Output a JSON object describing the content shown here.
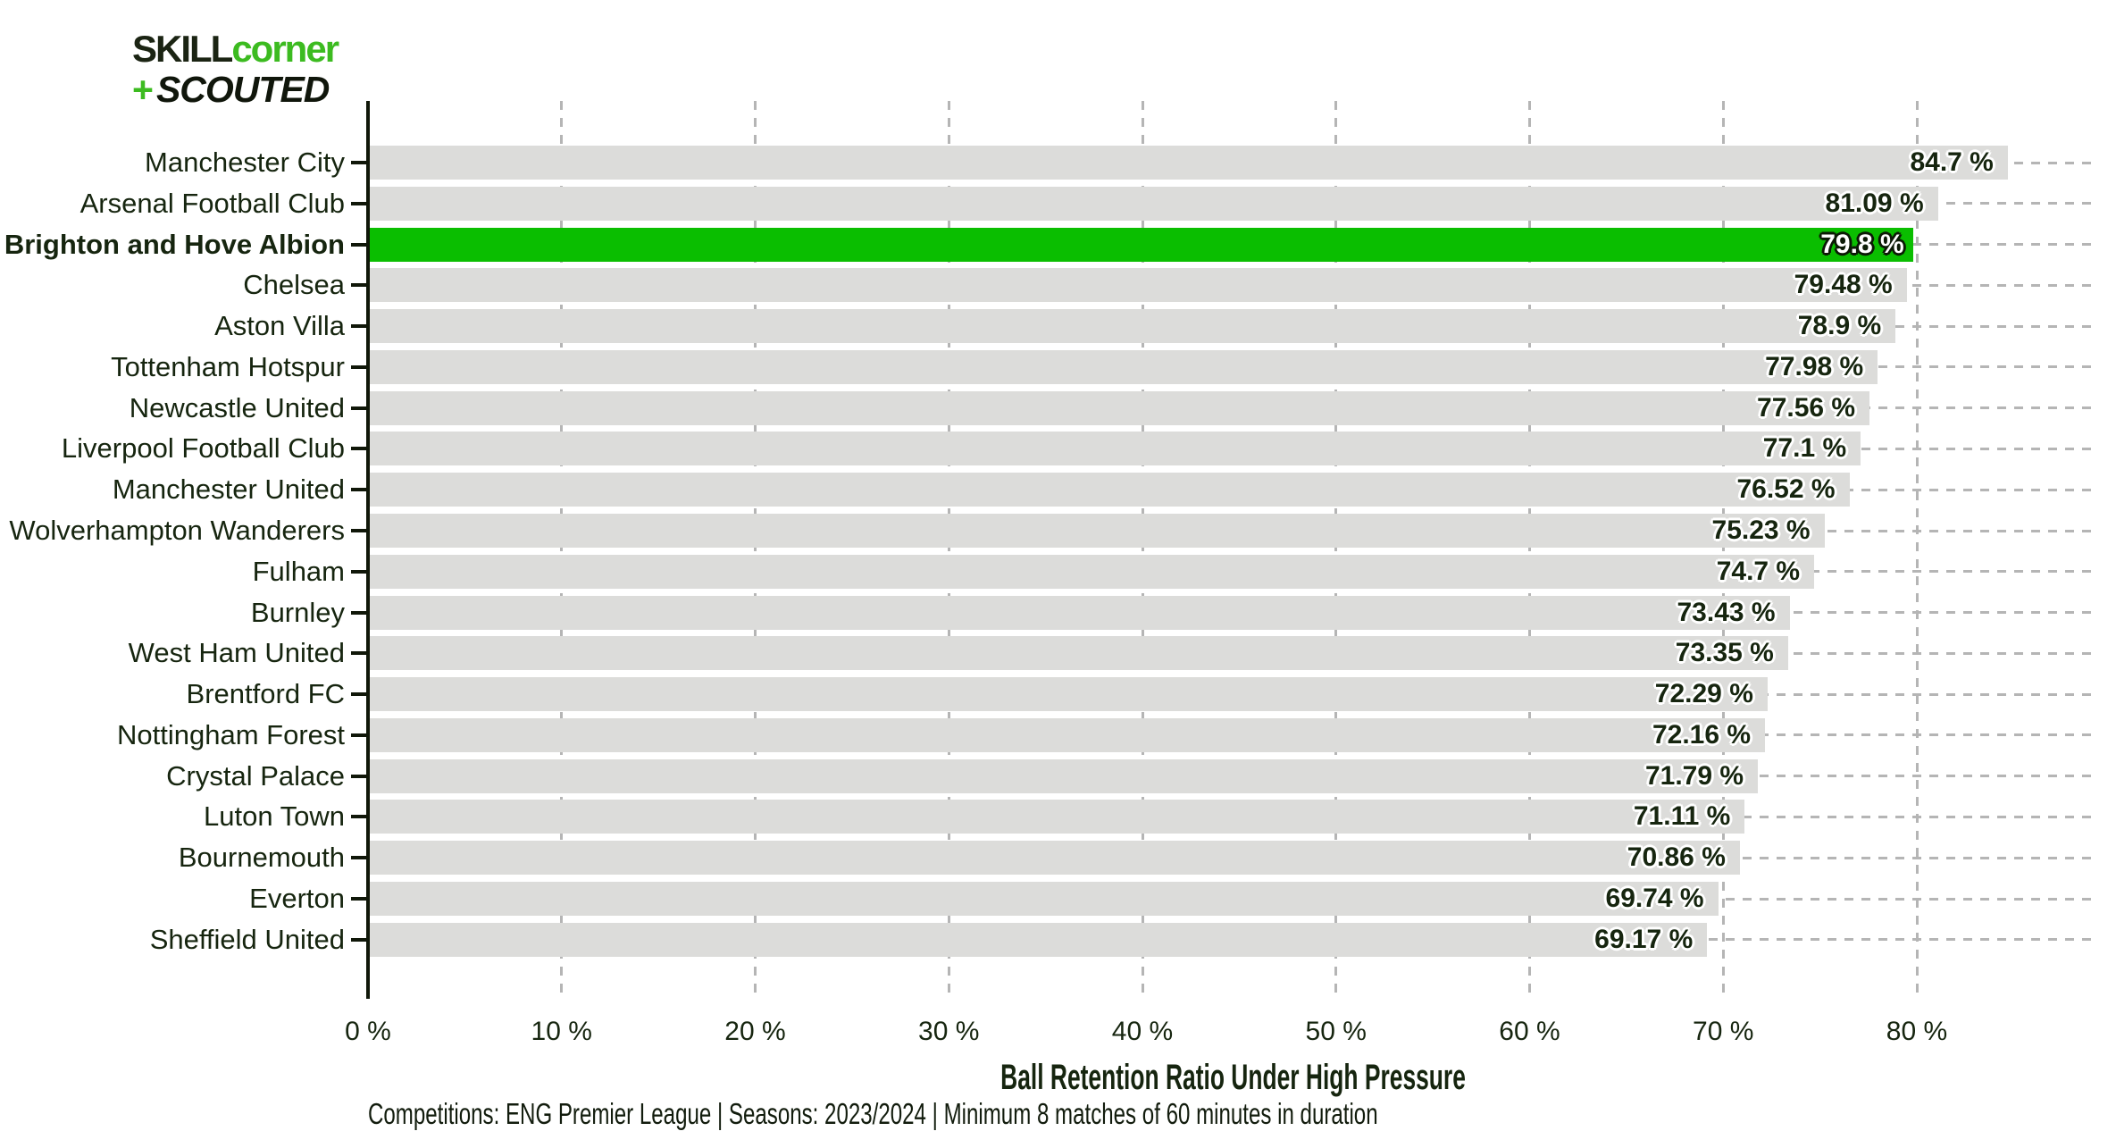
{
  "logo": {
    "skill": "SKILL",
    "corner": "corner",
    "plus": "+",
    "scouted": "SCOUTED"
  },
  "chart_data": {
    "type": "bar",
    "orientation": "horizontal",
    "title": "",
    "xlabel": "Ball Retention Ratio Under High Pressure",
    "ylabel": "",
    "categories": [
      "Manchester City",
      "Arsenal Football Club",
      "Brighton and Hove Albion",
      "Chelsea",
      "Aston Villa",
      "Tottenham Hotspur",
      "Newcastle United",
      "Liverpool Football Club",
      "Manchester United",
      "Wolverhampton Wanderers",
      "Fulham",
      "Burnley",
      "West Ham United",
      "Brentford FC",
      "Nottingham Forest",
      "Crystal Palace",
      "Luton Town",
      "Bournemouth",
      "Everton",
      "Sheffield United"
    ],
    "values": [
      84.7,
      81.09,
      79.8,
      79.48,
      78.9,
      77.98,
      77.56,
      77.1,
      76.52,
      75.23,
      74.7,
      73.43,
      73.35,
      72.29,
      72.16,
      71.79,
      71.11,
      70.86,
      69.74,
      69.17
    ],
    "value_labels": [
      "84.7 %",
      "81.09 %",
      "79.8 %",
      "79.48 %",
      "78.9 %",
      "77.98 %",
      "77.56 %",
      "77.1 %",
      "76.52 %",
      "75.23 %",
      "74.7 %",
      "73.43 %",
      "73.35 %",
      "72.29 %",
      "72.16 %",
      "71.79 %",
      "71.11 %",
      "70.86 %",
      "69.74 %",
      "69.17 %"
    ],
    "highlight_index": 2,
    "highlighted_category": "Brighton and Hove Albion",
    "xlim": [
      0,
      89.5
    ],
    "x_tick_values": [
      0,
      10,
      20,
      30,
      40,
      50,
      60,
      70,
      80
    ],
    "x_tick_labels": [
      "0 %",
      "10 %",
      "20 %",
      "30 %",
      "40 %",
      "50 %",
      "60 %",
      "70 %",
      "80 %"
    ],
    "grid": "dashed gray gridlines, vertical at each 10% and horizontal at each category, drawn behind bars",
    "legend": "none",
    "colors": {
      "default_bar": "#dcdcda",
      "highlight_bar": "#0abe00",
      "text": "#16250f",
      "highlight_value_text": "#ffffff",
      "grid": "#b5b5b5",
      "axis": "#101709",
      "logo_green": "#3cbb20"
    }
  },
  "footnote": "Competitions: ENG Premier League | Seasons: 2023/2024 | Minimum 8 matches of 60 minutes in duration"
}
